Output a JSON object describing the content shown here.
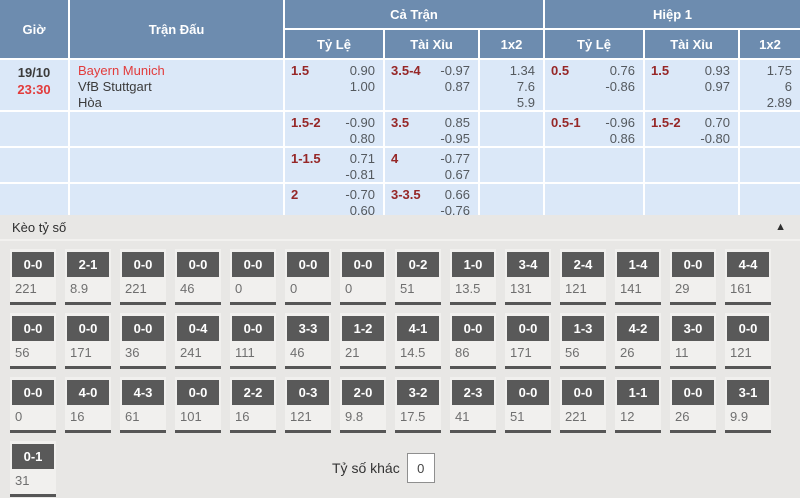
{
  "table": {
    "headers": {
      "time": "Giờ",
      "match": "Trận Đấu",
      "full_match": "Cả Trận",
      "first_half": "Hiệp 1",
      "handicap": "Tỷ Lệ",
      "over_under": "Tài Xỉu",
      "one_x_two": "1x2"
    },
    "match_row": {
      "date": "19/10",
      "time": "23:30",
      "home": "Bayern Munich",
      "away": "VfB Stuttgart",
      "draw": "Hòa"
    },
    "odds_rows": [
      {
        "ft_hc": {
          "line": "1.5",
          "o1": "0.90",
          "o2": "1.00"
        },
        "ft_ou": {
          "line": "3.5-4",
          "o1": "-0.97",
          "o2": "0.87"
        },
        "ft_1x2": [
          "1.34",
          "7.6",
          "5.9"
        ],
        "h1_hc": {
          "line": "0.5",
          "o1": "0.76",
          "o2": "-0.86"
        },
        "h1_ou": {
          "line": "1.5",
          "o1": "0.93",
          "o2": "0.97"
        },
        "h1_1x2": [
          "1.75",
          "6",
          "2.89"
        ]
      },
      {
        "ft_hc": {
          "line": "1.5-2",
          "o1": "-0.90",
          "o2": "0.80"
        },
        "ft_ou": {
          "line": "3.5",
          "o1": "0.85",
          "o2": "-0.95"
        },
        "ft_1x2": [
          "",
          "",
          ""
        ],
        "h1_hc": {
          "line": "0.5-1",
          "o1": "-0.96",
          "o2": "0.86"
        },
        "h1_ou": {
          "line": "1.5-2",
          "o1": "0.70",
          "o2": "-0.80"
        },
        "h1_1x2": [
          "",
          "",
          ""
        ]
      },
      {
        "ft_hc": {
          "line": "1-1.5",
          "o1": "0.71",
          "o2": "-0.81"
        },
        "ft_ou": {
          "line": "4",
          "o1": "-0.77",
          "o2": "0.67"
        },
        "ft_1x2": [
          "",
          "",
          ""
        ],
        "h1_hc": {
          "line": "",
          "o1": "",
          "o2": ""
        },
        "h1_ou": {
          "line": "",
          "o1": "",
          "o2": ""
        },
        "h1_1x2": [
          "",
          "",
          ""
        ]
      },
      {
        "ft_hc": {
          "line": "2",
          "o1": "-0.70",
          "o2": "0.60"
        },
        "ft_ou": {
          "line": "3-3.5",
          "o1": "0.66",
          "o2": "-0.76"
        },
        "ft_1x2": [
          "",
          "",
          ""
        ],
        "h1_hc": {
          "line": "",
          "o1": "",
          "o2": ""
        },
        "h1_ou": {
          "line": "",
          "o1": "",
          "o2": ""
        },
        "h1_1x2": [
          "",
          "",
          ""
        ]
      }
    ]
  },
  "score_section": {
    "title": "Kèo tỷ số",
    "collapse_icon": "▲",
    "rows": [
      [
        {
          "score": "0-0",
          "odds": "221"
        },
        {
          "score": "2-1",
          "odds": "8.9"
        },
        {
          "score": "0-0",
          "odds": "221"
        },
        {
          "score": "0-0",
          "odds": "46"
        },
        {
          "score": "0-0",
          "odds": "0"
        },
        {
          "score": "0-0",
          "odds": "0"
        },
        {
          "score": "0-0",
          "odds": "0"
        },
        {
          "score": "0-2",
          "odds": "51"
        },
        {
          "score": "1-0",
          "odds": "13.5"
        },
        {
          "score": "3-4",
          "odds": "131"
        },
        {
          "score": "2-4",
          "odds": "121"
        },
        {
          "score": "1-4",
          "odds": "141"
        },
        {
          "score": "0-0",
          "odds": "29"
        },
        {
          "score": "4-4",
          "odds": "161"
        }
      ],
      [
        {
          "score": "0-0",
          "odds": "56"
        },
        {
          "score": "0-0",
          "odds": "171"
        },
        {
          "score": "0-0",
          "odds": "36"
        },
        {
          "score": "0-4",
          "odds": "241"
        },
        {
          "score": "0-0",
          "odds": "111"
        },
        {
          "score": "3-3",
          "odds": "46"
        },
        {
          "score": "1-2",
          "odds": "21"
        },
        {
          "score": "4-1",
          "odds": "14.5"
        },
        {
          "score": "0-0",
          "odds": "86"
        },
        {
          "score": "0-0",
          "odds": "171"
        },
        {
          "score": "1-3",
          "odds": "56"
        },
        {
          "score": "4-2",
          "odds": "26"
        },
        {
          "score": "3-0",
          "odds": "11"
        },
        {
          "score": "0-0",
          "odds": "121"
        }
      ],
      [
        {
          "score": "0-0",
          "odds": "0"
        },
        {
          "score": "4-0",
          "odds": "16"
        },
        {
          "score": "4-3",
          "odds": "61"
        },
        {
          "score": "0-0",
          "odds": "101"
        },
        {
          "score": "2-2",
          "odds": "16"
        },
        {
          "score": "0-3",
          "odds": "121"
        },
        {
          "score": "2-0",
          "odds": "9.8"
        },
        {
          "score": "3-2",
          "odds": "17.5"
        },
        {
          "score": "2-3",
          "odds": "41"
        },
        {
          "score": "0-0",
          "odds": "51"
        },
        {
          "score": "0-0",
          "odds": "221"
        },
        {
          "score": "1-1",
          "odds": "12"
        },
        {
          "score": "0-0",
          "odds": "26"
        },
        {
          "score": "3-1",
          "odds": "9.9"
        }
      ],
      [
        {
          "score": "0-1",
          "odds": "31"
        }
      ]
    ],
    "other_score_label": "Tỷ số khác",
    "other_score_value": "0"
  },
  "colors": {
    "header_blue": "#6d8caf",
    "row_light_blue": "#dbe8f8",
    "handicap_maroon": "#962727",
    "accent_red": "#e23b3b",
    "score_box_gray": "#595959",
    "section_gray": "#e8e7e5"
  }
}
